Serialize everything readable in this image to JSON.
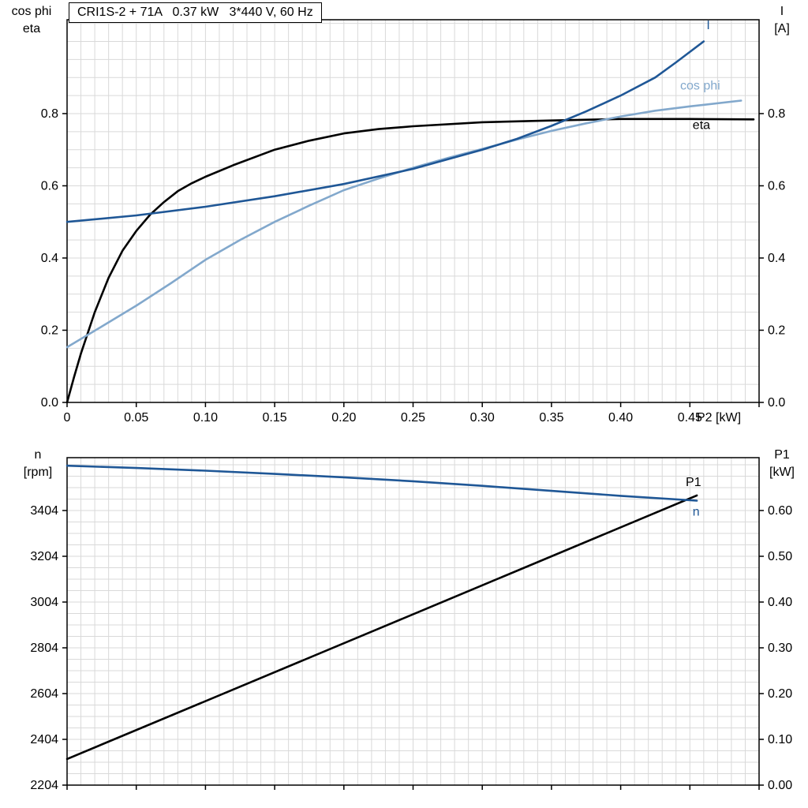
{
  "title_box": {
    "text": "CRI1S-2 + 71A   0.37 kW   3*440 V, 60 Hz"
  },
  "colors": {
    "dark_blue": "#1f5796",
    "light_blue": "#82a8cc",
    "black": "#000000",
    "grid": "#d9d9d9",
    "frame": "#000000"
  },
  "chart_data": [
    {
      "type": "line",
      "title": "CRI1S-2 + 71A   0.37 kW   3*440 V, 60 Hz",
      "x_axis": {
        "min": 0,
        "max": 0.5,
        "minor_step": 0.01,
        "ticks": [
          0,
          0.05,
          0.1,
          0.15,
          0.2,
          0.25,
          0.3,
          0.35,
          0.4,
          0.45,
          0.5
        ],
        "tick_labels": [
          "0",
          "0.05",
          "0.10",
          "0.15",
          "0.20",
          "0.25",
          "0.30",
          "0.35",
          "0.40",
          "0.45",
          ""
        ],
        "label": "P2 [kW]"
      },
      "y_left": {
        "min": 0,
        "max": 1.06,
        "minor_step": 0.05,
        "ticks": [
          0,
          0.2,
          0.4,
          0.6,
          0.8
        ],
        "tick_labels": [
          "0.0",
          "0.2",
          "0.4",
          "0.6",
          "0.8"
        ],
        "label_lines": [
          "cos phi",
          "eta"
        ]
      },
      "y_right": {
        "min": 0,
        "max": 1.06,
        "ticks": [
          0,
          0.2,
          0.4,
          0.6,
          0.8
        ],
        "tick_labels": [
          "0.0",
          "0.2",
          "0.4",
          "0.6",
          "0.8"
        ],
        "label_lines": [
          "I",
          "[A]"
        ]
      },
      "series": [
        {
          "name": "eta",
          "color": "#000000",
          "width": 2.6,
          "axis": "left",
          "points": [
            [
              0,
              0
            ],
            [
              0.005,
              0.07
            ],
            [
              0.01,
              0.135
            ],
            [
              0.02,
              0.25
            ],
            [
              0.03,
              0.345
            ],
            [
              0.04,
              0.42
            ],
            [
              0.05,
              0.475
            ],
            [
              0.06,
              0.52
            ],
            [
              0.07,
              0.555
            ],
            [
              0.08,
              0.585
            ],
            [
              0.09,
              0.607
            ],
            [
              0.1,
              0.625
            ],
            [
              0.12,
              0.657
            ],
            [
              0.15,
              0.7
            ],
            [
              0.175,
              0.725
            ],
            [
              0.2,
              0.745
            ],
            [
              0.225,
              0.757
            ],
            [
              0.25,
              0.765
            ],
            [
              0.3,
              0.776
            ],
            [
              0.35,
              0.781
            ],
            [
              0.4,
              0.785
            ],
            [
              0.45,
              0.785
            ],
            [
              0.496,
              0.784
            ]
          ]
        },
        {
          "name": "cos phi",
          "color": "#82a8cc",
          "width": 2.6,
          "axis": "left",
          "points": [
            [
              0,
              0.153
            ],
            [
              0.025,
              0.21
            ],
            [
              0.05,
              0.268
            ],
            [
              0.075,
              0.33
            ],
            [
              0.1,
              0.395
            ],
            [
              0.125,
              0.45
            ],
            [
              0.15,
              0.5
            ],
            [
              0.175,
              0.545
            ],
            [
              0.2,
              0.588
            ],
            [
              0.225,
              0.62
            ],
            [
              0.25,
              0.65
            ],
            [
              0.275,
              0.677
            ],
            [
              0.3,
              0.702
            ],
            [
              0.325,
              0.728
            ],
            [
              0.35,
              0.752
            ],
            [
              0.375,
              0.773
            ],
            [
              0.4,
              0.792
            ],
            [
              0.425,
              0.808
            ],
            [
              0.45,
              0.82
            ],
            [
              0.487,
              0.836
            ]
          ]
        },
        {
          "name": "I",
          "color": "#1f5796",
          "width": 2.6,
          "axis": "left",
          "points": [
            [
              0,
              0.5
            ],
            [
              0.05,
              0.518
            ],
            [
              0.1,
              0.542
            ],
            [
              0.15,
              0.571
            ],
            [
              0.2,
              0.605
            ],
            [
              0.25,
              0.647
            ],
            [
              0.3,
              0.7
            ],
            [
              0.325,
              0.73
            ],
            [
              0.35,
              0.766
            ],
            [
              0.375,
              0.806
            ],
            [
              0.4,
              0.85
            ],
            [
              0.425,
              0.9
            ],
            [
              0.44,
              0.942
            ],
            [
              0.46,
              1.0
            ]
          ]
        }
      ],
      "curve_labels": [
        {
          "text": "I",
          "x": 0.462,
          "y": 1.045,
          "axis": "left",
          "color": "#1f5796"
        },
        {
          "text": "cos phi",
          "x": 0.443,
          "y": 0.878,
          "axis": "left",
          "color": "#82a8cc"
        },
        {
          "text": "eta",
          "x": 0.452,
          "y": 0.768,
          "axis": "left",
          "color": "#000000"
        }
      ]
    },
    {
      "type": "line",
      "title": "",
      "x_axis": {
        "min": 0,
        "max": 0.5,
        "minor_step": 0.01,
        "ticks": [
          0,
          0.05,
          0.1,
          0.15,
          0.2,
          0.25,
          0.3,
          0.35,
          0.4,
          0.45,
          0.5
        ],
        "tick_labels": [
          "",
          "",
          "",
          "",
          "",
          "",
          "",
          "",
          "",
          "",
          ""
        ],
        "label": ""
      },
      "y_left": {
        "min": 2204,
        "max": 3635,
        "minor_step": 50,
        "ticks": [
          2204,
          2404,
          2604,
          2804,
          3004,
          3204,
          3404
        ],
        "tick_labels": [
          "2204",
          "2404",
          "2604",
          "2804",
          "3004",
          "3204",
          "3404"
        ],
        "label_lines": [
          "n",
          "[rpm]"
        ]
      },
      "y_right": {
        "min": 0,
        "max": 0.7155,
        "ticks": [
          0,
          0.1,
          0.2,
          0.3,
          0.4,
          0.5,
          0.6
        ],
        "tick_labels": [
          "0.00",
          "0.10",
          "0.20",
          "0.30",
          "0.40",
          "0.50",
          "0.60"
        ],
        "label_lines": [
          "P1",
          "[kW]"
        ]
      },
      "series": [
        {
          "name": "P1",
          "color": "#000000",
          "width": 2.6,
          "axis": "right",
          "points": [
            [
              0,
              0.057
            ],
            [
              0.23,
              0.348
            ],
            [
              0.455,
              0.633
            ]
          ]
        },
        {
          "name": "n",
          "color": "#1f5796",
          "width": 2.6,
          "axis": "left",
          "points": [
            [
              0,
              3600
            ],
            [
              0.05,
              3590
            ],
            [
              0.1,
              3578
            ],
            [
              0.15,
              3564
            ],
            [
              0.2,
              3549
            ],
            [
              0.25,
              3532
            ],
            [
              0.3,
              3512
            ],
            [
              0.35,
              3490
            ],
            [
              0.4,
              3468
            ],
            [
              0.455,
              3447
            ]
          ]
        }
      ],
      "curve_labels": [
        {
          "text": "P1",
          "x": 0.447,
          "y": 0.662,
          "axis": "right",
          "color": "#000000"
        },
        {
          "text": "n",
          "x": 0.452,
          "y": 3398,
          "axis": "left",
          "color": "#1f5796"
        }
      ]
    }
  ]
}
